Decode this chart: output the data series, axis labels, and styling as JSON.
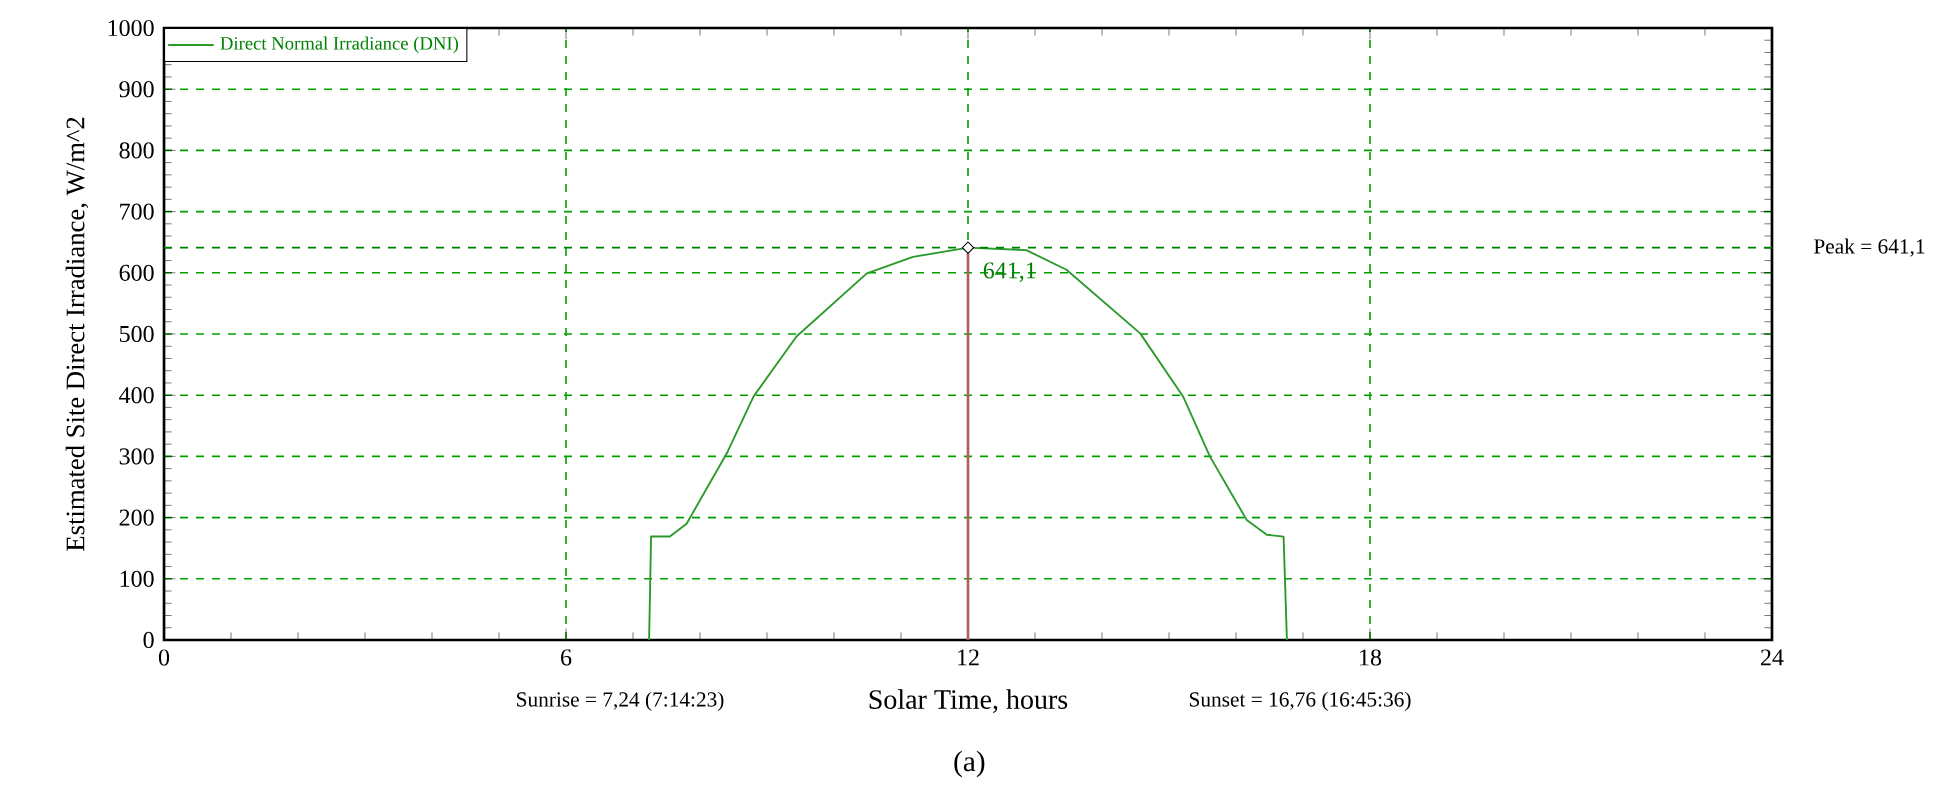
{
  "chart_data": {
    "type": "line",
    "xlabel": "Solar Time, hours",
    "ylabel": "Estimated Site Direct Irradiance, W/m^2",
    "series": [
      {
        "name": "Direct Normal Irradiance (DNI)",
        "color": "#2a9a2a",
        "x": [
          7.24,
          7.27,
          7.55,
          7.8,
          8.4,
          8.8,
          9.44,
          10.49,
          11.18,
          12,
          12.87,
          13.47,
          14.57,
          15.21,
          15.61,
          16.16,
          16.46,
          16.71,
          16.76
        ],
        "values": [
          0,
          169,
          169,
          190,
          305,
          398,
          496,
          599,
          626,
          641.1,
          637,
          605,
          501,
          398,
          300,
          196,
          172,
          169,
          0
        ]
      }
    ],
    "xlim": [
      0,
      24
    ],
    "ylim": [
      0,
      1000
    ],
    "xticks": [
      0,
      6,
      12,
      18,
      24
    ],
    "yticks": [
      0,
      100,
      200,
      300,
      400,
      500,
      600,
      700,
      800,
      900,
      1000
    ],
    "grid": true,
    "legend": "top left",
    "line_style": "solid",
    "ref_lines": [
      {
        "axis": "y",
        "value": 641.1,
        "label": "Peak = 641,1",
        "color": "#008000",
        "line_style": "dashed"
      }
    ],
    "annotations": [
      "Sunrise = 7,24 (7:14:23)",
      "Sunset = 16,76 (16:45:36)",
      {
        "text": "641,1",
        "x": 12,
        "y": 641.1
      },
      "(a)"
    ]
  }
}
